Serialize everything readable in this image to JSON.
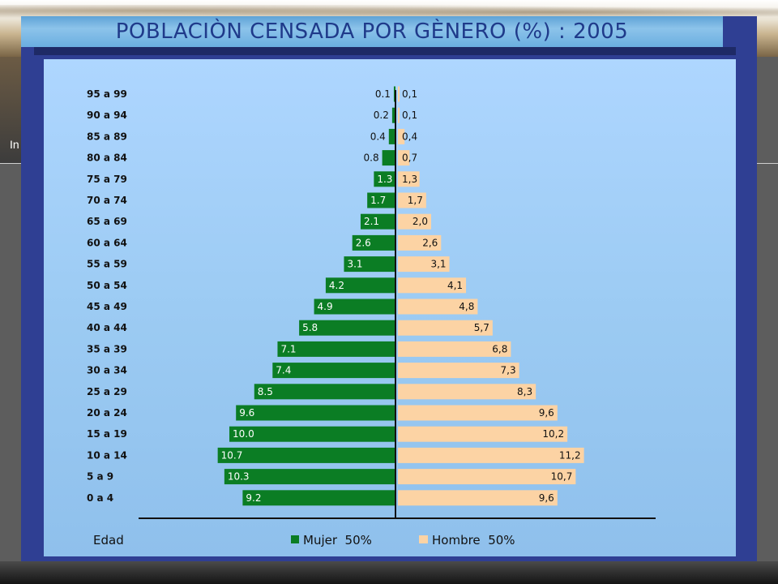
{
  "slide": {
    "title": "POBLACIÒN CENSADA POR GÈNERO (%) : 2005",
    "side_text": "In"
  },
  "chart_data": {
    "type": "bar",
    "orientation": "horizontal-population-pyramid",
    "title": "POBLACIÒN CENSADA POR GÈNERO (%) : 2005",
    "ylabel": "Edad",
    "categories": [
      "95 a 99",
      "90 a 94",
      "85 a 89",
      "80 a 84",
      "75 a 79",
      "70 a 74",
      "65 a 69",
      "60 a 64",
      "55 a 59",
      "50 a 54",
      "45 a 49",
      "40 a 44",
      "35 a 39",
      "30 a 34",
      "25 a 29",
      "20 a 24",
      "15 a 19",
      "10 a 14",
      "5 a 9",
      "0 a 4"
    ],
    "series": [
      {
        "name": "Mujer  50%",
        "color": "#0b7d24",
        "side": "left",
        "values": [
          0.1,
          0.2,
          0.4,
          0.8,
          1.3,
          1.7,
          2.1,
          2.6,
          3.1,
          4.2,
          4.9,
          5.8,
          7.1,
          7.4,
          8.5,
          9.6,
          10.0,
          10.7,
          10.3,
          9.2
        ],
        "labels": [
          "0.1",
          "0.2",
          "0.4",
          "0.8",
          "1.3",
          "1.7",
          "2.1",
          "2.6",
          "3.1",
          "4.2",
          "4.9",
          "5.8",
          "7.1",
          "7.4",
          "8.5",
          "9.6",
          "10.0",
          "10.7",
          "10.3",
          "9.2"
        ]
      },
      {
        "name": "Hombre  50%",
        "color": "#fcd3a4",
        "side": "right",
        "values": [
          0.1,
          0.1,
          0.4,
          0.7,
          1.3,
          1.7,
          2.0,
          2.6,
          3.1,
          4.1,
          4.8,
          5.7,
          6.8,
          7.3,
          8.3,
          9.6,
          10.2,
          11.2,
          10.7,
          9.6
        ],
        "labels": [
          "0,1",
          "0,1",
          "0,4",
          "0,7",
          "1,3",
          "1,7",
          "2,0",
          "2,6",
          "3,1",
          "4,1",
          "4,8",
          "5,7",
          "6,8",
          "7,3",
          "8,3",
          "9,6",
          "10,2",
          "11,2",
          "10,7",
          "9,6"
        ]
      }
    ],
    "legend": "bottom",
    "grid": false
  }
}
